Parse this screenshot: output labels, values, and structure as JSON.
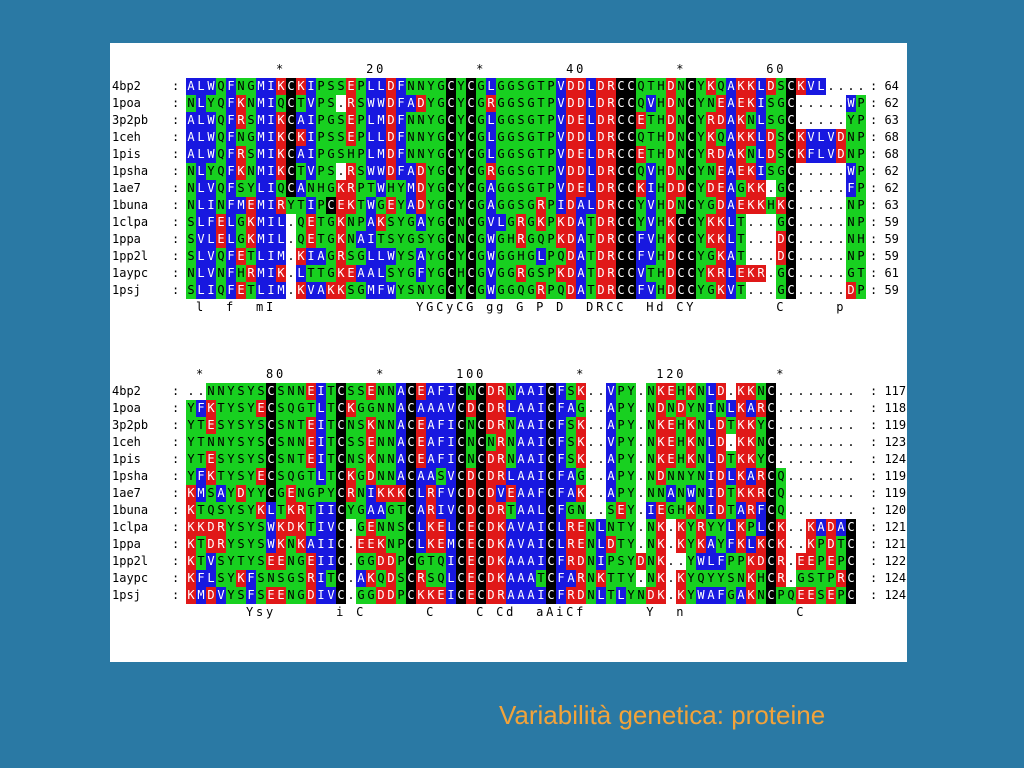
{
  "title": "Variabilità genetica: proteine",
  "colors": {
    "background": "#2a79a4",
    "black": "#000000",
    "blue": "#1818e0",
    "green": "#18d020",
    "red": "#e01818",
    "yellow": "#f0f018",
    "title": "#f2a33a"
  },
  "blocks": [
    {
      "ruler": "         *        20         *        40         *        60",
      "rows": [
        {
          "name": "4bp2",
          "seq": "ALWQFNGMIKCKIPSSEPLLDFNNYGCYCGLGGSGTPVDDLDRCCQTHDNCYKQAKKLDSCKVL....",
          "num": "64"
        },
        {
          "name": "1poa",
          "seq": "NLYQFKNMIQCTVPS.RSWWDFADYGCYCGRGGSGTPVDDLDRCCQVHDNCYNEAEKISGC.....WP",
          "num": "62"
        },
        {
          "name": "3p2pb",
          "seq": "ALWQFRSMIKCAIPGSEPLMDFNNYGCYCGLGGSGTPVDELDRCCETHDNCYRDAKNLSGC.....YP",
          "num": "63"
        },
        {
          "name": "1ceh",
          "seq": "ALWQFNGMIKCKIPSSEPLLDFNNYGCYCGLGGSGTPVDDLDRCCQTHDNCYKQAKKLDSCKVLVDNP",
          "num": "68"
        },
        {
          "name": "1pis",
          "seq": "ALWQFRSMIKCAIPGSHPLMDFNNYGCYCGLGGSGTPVDELDRCCETHDNCYRDAKNLDSCKFLVDNP",
          "num": "68"
        },
        {
          "name": "1psha",
          "seq": "NLYQFKNMIKCTVPS.RSWWDFADYGCYCGRGGSGTPVDDLDRCCQVHDNCYNEAEKISGC.....WP",
          "num": "62"
        },
        {
          "name": "1ae7",
          "seq": "NLVQFSYLIQCANHGKRPTWHYMDYGCYCGAGGSGTPVDELDRCCKIHDDCYDEAGKK.GC.....FP",
          "num": "62"
        },
        {
          "name": "1buna",
          "seq": "NLINFMEMIRYTIPCEKTWGEYADYGCYCGAGGSGRPIDALDRCCYVHDNCYGDAEKKHKC.....NP",
          "num": "63"
        },
        {
          "name": "1clpa",
          "seq": "SLFELGKMIL.QETGKNPAKSYGAYGCNCGVLGRGKPKDATDRCCYVHKCCYKKLT...GC.....NP",
          "num": "59"
        },
        {
          "name": "1ppa",
          "seq": "SVLELGKMIL.QETGKNAITSYGSYGCNCGWGHRGQPKDATDRCCFVHKCCYKKLT...DC.....NH",
          "num": "59"
        },
        {
          "name": "1pp2l",
          "seq": "SLVQFETLIM.KIAGRSGLLWYSAYGCYCGWGGHGLPQDATDRCCFVHDCCYGKAT...DC.....NP",
          "num": "59"
        },
        {
          "name": "1aypc",
          "seq": "NLVNFHRMIK.LTTGKEAALSYGFYGCHCGVGGRGSPKDATDRCCVTHDCCYKRLEKR.GC.....GT",
          "num": "61"
        },
        {
          "name": "1psj",
          "seq": "SLIQFETLIM.KVAKKSGMFWYSNYGCYCGWGGQGRPQDATDRCCFVHDCCYGKVT...GC.....DP",
          "num": "59"
        }
      ],
      "consensus": " l  f  mI              YGCyCG gg G P D  DRCC  Hd CY        C     p"
    },
    {
      "ruler": " *      80         *       100         *       120         *",
      "rows": [
        {
          "name": "4bp2",
          "seq": "..NNYSYSCSNNEITCSSENNACEAFICNCDRNAAICFSK..VPY.NKEHKNLD.KKNC........",
          "num": "117"
        },
        {
          "name": "1poa",
          "seq": "YFKTYSYECSQGTLTCKGGNNACAAAVCDCDRLAAICFAG..APY.NDNDYNINLKARC........",
          "num": "118"
        },
        {
          "name": "3p2pb",
          "seq": "YTESYSYSCSNTEITCNSKNNACEAFICNCDRNAAICFSK..APY.NKEHKNLDTKKYC........",
          "num": "119"
        },
        {
          "name": "1ceh",
          "seq": "YTNNYSYSCSNNEITCSSENNACEAFICNCNRNAAICFSK..VPY.NKEHKNLD.KKNC........",
          "num": "123"
        },
        {
          "name": "1pis",
          "seq": "YTESYSYSCSNTEITCNSKNNACEAFICNCDRNAAICFSK..APY.NKEHKNLDTKKYC........",
          "num": "124"
        },
        {
          "name": "1psha",
          "seq": "YFKTYSYECSQGTLTCKGDNNACAASVCDCDRLAAICFAG..APY.NDNNYNIDLKARCQ.......",
          "num": "119"
        },
        {
          "name": "1ae7",
          "seq": "KMSAYDYYCGENGPYCRNIKKKCLRFVCDCDVEAAFCFAK..APY.NNANWNIDTKKRCQ.......",
          "num": "119"
        },
        {
          "name": "1buna",
          "seq": "KTQSYSYKLTKRTIICYGAAGTCARIVCDCDRTAALCFGN..SEY.IEGHKNIDTARFCQ.......",
          "num": "120"
        },
        {
          "name": "1clpa",
          "seq": "KKDRYSYSWKDKTIVC.GENNSCLKELCECDKAVAICLRENLNTY.NK.KYRYYLKPLCK..KADAC",
          "num": "121"
        },
        {
          "name": "1ppa",
          "seq": "KTDRYSYSWKNKAIIC.EEKNPCLKEMCECDKAVAICLRENLDTY.NK.KYKAYFKLKCK..KPDTC",
          "num": "121"
        },
        {
          "name": "1pp2l",
          "seq": "KTVSYTYSEENGEIIC.GGDDPCGTQICECDKAAAICFRDNIPSYDNK..YWLFPPKDCR.EEPEPC",
          "num": "122"
        },
        {
          "name": "1aypc",
          "seq": "KFLSYKFSNSGSRITC.AKQDSCRSQLCECDKAAATCFARNKTTY.NK.KYQYYSNKHCR.GSTPRC",
          "num": "124"
        },
        {
          "name": "1psj",
          "seq": "KMDVYSFSEENGDIVC.GGDDPCKKEICECDRAAAICFRDNLTLYNDK.KYWAFGAKNCPQEESEPC",
          "num": "124"
        }
      ],
      "consensus": "      Ysy      i C      C    C Cd  aAiCf      Y  n           C"
    }
  ]
}
